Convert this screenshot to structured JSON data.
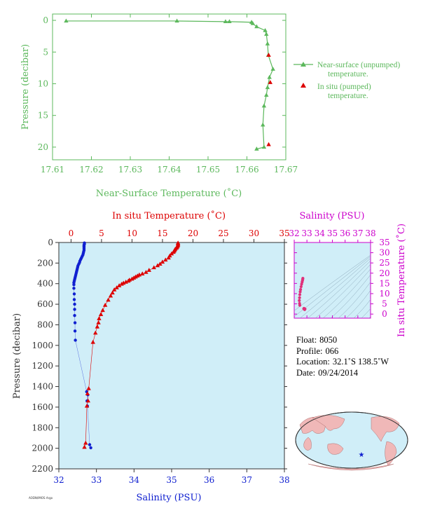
{
  "chart_data": [
    {
      "id": "near-surface",
      "type": "line",
      "xlabel": "Near-Surface Temperature (˚C)",
      "ylabel": "Pressure (decibar)",
      "xlim": [
        17.61,
        17.67
      ],
      "ylim": [
        22,
        -1
      ],
      "xticks": [
        "17.61",
        "17.62",
        "17.63",
        "17.64",
        "17.65",
        "17.66",
        "17.67"
      ],
      "yticks": [
        "0",
        "5",
        "10",
        "15",
        "20"
      ],
      "legend_position": "right",
      "series": [
        {
          "name": "Near-surface (unpumped) temperature.",
          "color": "#5cb85c",
          "marker": "triangle",
          "x": [
            17.6625,
            17.6644,
            17.6641,
            17.6644,
            17.665,
            17.6653,
            17.6658,
            17.6667,
            17.6655,
            17.6653,
            17.665,
            17.6647,
            17.6625,
            17.6615,
            17.6612,
            17.6555,
            17.6545,
            17.642,
            17.6135
          ],
          "y": [
            20.3,
            20.0,
            16.5,
            13.5,
            11.8,
            10.6,
            9.0,
            7.7,
            5.5,
            3.7,
            2.2,
            1.6,
            1.0,
            0.5,
            0.3,
            0.2,
            0.2,
            0.1,
            0.1
          ]
        },
        {
          "name": "In situ (pumped) temperature.",
          "color": "#dd0000",
          "marker": "triangle",
          "x": [
            17.6656,
            17.6656,
            17.666
          ],
          "y": [
            19.6,
            5.5,
            9.8
          ]
        }
      ]
    },
    {
      "id": "profile",
      "type": "line",
      "xlabel_top": "In situ Temperature (˚C)",
      "xlabel_bottom": "Salinity (PSU)",
      "ylabel": "Pressure (decibar)",
      "xlim_top": [
        -2,
        35
      ],
      "xlim_bottom": [
        32,
        38
      ],
      "ylim": [
        2200,
        0
      ],
      "xticks_top": [
        "0",
        "5",
        "10",
        "15",
        "20",
        "25",
        "30",
        "35"
      ],
      "xticks_bottom": [
        "32",
        "33",
        "34",
        "35",
        "36",
        "37",
        "38"
      ],
      "yticks": [
        "0",
        "200",
        "400",
        "600",
        "800",
        "1000",
        "1200",
        "1400",
        "1600",
        "1800",
        "2000",
        "2200"
      ],
      "background": "#d0eef8",
      "series": [
        {
          "name": "temperature",
          "color": "#dd0000",
          "marker": "triangle",
          "x": [
            17.55,
            17.55,
            17.55,
            17.5,
            17.4,
            17.3,
            17.1,
            17.0,
            16.9,
            16.8,
            16.5,
            16.2,
            16.0,
            15.5,
            15.0,
            14.6,
            14.2,
            13.6,
            12.8,
            12.3,
            11.7,
            11.2,
            10.9,
            10.6,
            10.3,
            10.0,
            9.6,
            9.4,
            9.0,
            8.6,
            8.3,
            7.9,
            7.5,
            7.1,
            6.8,
            6.5,
            6.1,
            5.6,
            5.2,
            4.9,
            4.6,
            4.5,
            4.3,
            4.0,
            3.6,
            2.9,
            2.7,
            2.8,
            2.6,
            2.4,
            2.2
          ],
          "y": [
            5,
            15,
            25,
            35,
            45,
            55,
            65,
            75,
            85,
            95,
            110,
            130,
            150,
            170,
            190,
            210,
            225,
            245,
            270,
            290,
            305,
            315,
            325,
            335,
            345,
            355,
            365,
            375,
            385,
            395,
            405,
            420,
            440,
            460,
            490,
            520,
            560,
            610,
            660,
            700,
            740,
            780,
            820,
            880,
            970,
            1420,
            1470,
            1540,
            1590,
            1950,
            1990
          ]
        },
        {
          "name": "salinity",
          "color": "#1020d0",
          "marker": "dot",
          "x": [
            32.68,
            32.68,
            32.67,
            32.67,
            32.67,
            32.67,
            32.67,
            32.66,
            32.65,
            32.64,
            32.62,
            32.6,
            32.58,
            32.56,
            32.55,
            32.53,
            32.51,
            32.5,
            32.49,
            32.48,
            32.47,
            32.46,
            32.45,
            32.44,
            32.43,
            32.42,
            32.41,
            32.4,
            32.4,
            32.4,
            32.41,
            32.41,
            32.42,
            32.42,
            32.42,
            32.43,
            32.43,
            32.44,
            32.74,
            32.77,
            32.75,
            32.76,
            32.82,
            32.85
          ],
          "y": [
            5,
            15,
            25,
            35,
            45,
            60,
            75,
            90,
            105,
            120,
            135,
            150,
            165,
            180,
            195,
            210,
            225,
            240,
            255,
            270,
            285,
            300,
            315,
            330,
            345,
            360,
            375,
            390,
            410,
            445,
            500,
            555,
            600,
            650,
            710,
            780,
            860,
            950,
            1450,
            1480,
            1540,
            1590,
            1965,
            1995
          ]
        }
      ]
    },
    {
      "id": "ts-inset",
      "type": "scatter",
      "xlabel_top": "Salinity (PSU)",
      "ylabel_right": "In situ Temperature (˚C)",
      "xlim": [
        32,
        38
      ],
      "ylim": [
        -2,
        35
      ],
      "xticks": [
        "32",
        "33",
        "34",
        "35",
        "36",
        "37",
        "38"
      ],
      "yticks": [
        "0",
        "5",
        "10",
        "15",
        "20",
        "25",
        "30",
        "35"
      ],
      "series": [
        {
          "name": "profile",
          "color": "#e0307a",
          "x": [
            32.68,
            32.67,
            32.65,
            32.62,
            32.58,
            32.54,
            32.5,
            32.47,
            32.44,
            32.42,
            32.4,
            32.42,
            32.44,
            32.77,
            32.75,
            32.85,
            32.82
          ],
          "y": [
            17.5,
            17.0,
            16.4,
            15.6,
            14.6,
            13.4,
            12.0,
            10.9,
            9.5,
            8.0,
            6.6,
            5.2,
            4.3,
            2.8,
            2.6,
            2.5,
            2.2
          ]
        }
      ]
    }
  ],
  "info": {
    "float_label": "Float:",
    "float_value": "8050",
    "profile_label": "Profile:",
    "profile_value": "066",
    "location_label": "Location:",
    "location_value": "32.1˚S  138.5˚W",
    "date_label": "Date:",
    "date_value": "09/24/2014"
  },
  "colors": {
    "green": "#5cb85c",
    "red": "#dd0000",
    "blue": "#1020d0",
    "magenta": "#cc00cc",
    "plot_bg": "#d0eef8",
    "text_dark": "#333333"
  },
  "stamp": "AODN/IMOS Argo"
}
